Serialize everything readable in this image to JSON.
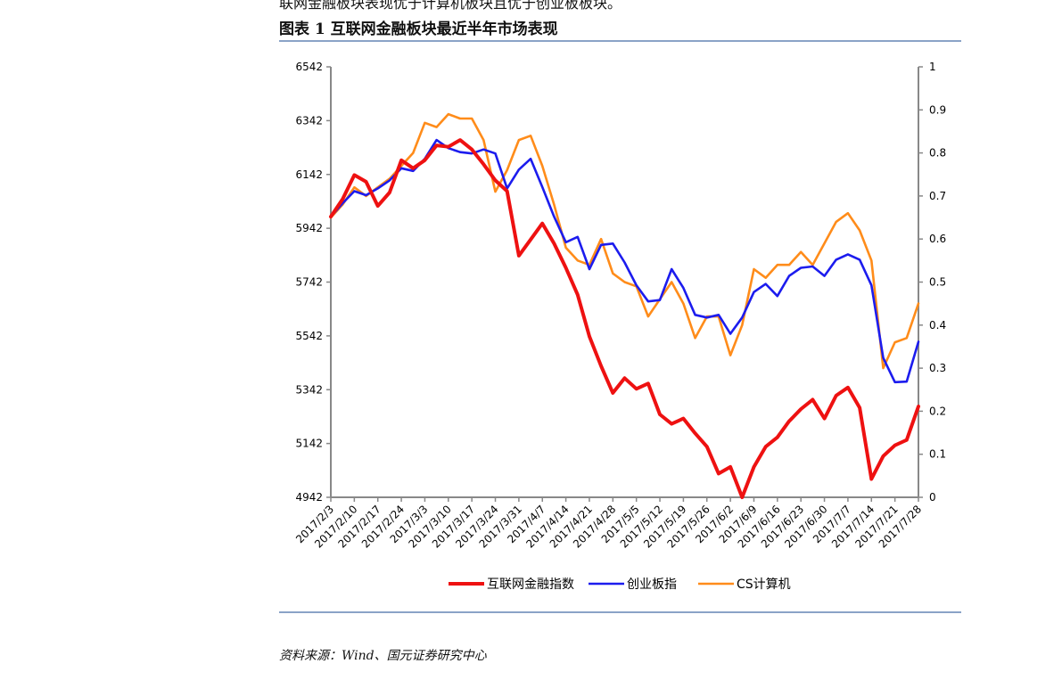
{
  "header": {
    "intro_text": "联网金融板块表现优于计算机板块且优于创业板板块。",
    "figure_title": "图表 1 互联网金融板块最近半年市场表现"
  },
  "footer": {
    "source": "资料来源：Wind、国元证券研究中心"
  },
  "chart_data": {
    "type": "line",
    "title": "",
    "left_axis": {
      "min": 4942,
      "max": 6542,
      "ticks": [
        "4942",
        "5142",
        "5342",
        "5542",
        "5742",
        "5942",
        "6142",
        "6342",
        "6542"
      ]
    },
    "right_axis": {
      "min": 0,
      "max": 1,
      "ticks": [
        "0",
        "0.1",
        "0.2",
        "0.3",
        "0.4",
        "0.5",
        "0.6",
        "0.7",
        "0.8",
        "0.9",
        "1"
      ]
    },
    "x_ticks": [
      "2017/2/3",
      "2017/2/10",
      "2017/2/17",
      "2017/2/24",
      "2017/3/3",
      "2017/3/10",
      "2017/3/17",
      "2017/3/24",
      "2017/3/31",
      "2017/4/7",
      "2017/4/14",
      "2017/4/21",
      "2017/4/28",
      "2017/5/5",
      "2017/5/12",
      "2017/5/19",
      "2017/5/26",
      "2017/6/2",
      "2017/6/9",
      "2017/6/16",
      "2017/6/23",
      "2017/6/30",
      "2017/7/7",
      "2017/7/14",
      "2017/7/21",
      "2017/7/28"
    ],
    "series": [
      {
        "name": "互联网金融指数",
        "color": "#ee1111",
        "values": [
          5985,
          6050,
          6140,
          6115,
          6025,
          6075,
          6195,
          6165,
          6195,
          6250,
          6245,
          6270,
          6235,
          6180,
          6120,
          6080,
          5840,
          5900,
          5960,
          5885,
          5795,
          5695,
          5540,
          5430,
          5330,
          5385,
          5345,
          5365,
          5250,
          5215,
          5235,
          5180,
          5130,
          5030,
          5055,
          4942,
          5055,
          5130,
          5165,
          5225,
          5270,
          5305,
          5235,
          5320,
          5350,
          5275,
          5010,
          5095,
          5135,
          5155,
          5280
        ]
      },
      {
        "name": "创业板指",
        "color": "#1c1cee",
        "values": [
          5985,
          6035,
          6080,
          6065,
          6090,
          6120,
          6165,
          6155,
          6200,
          6270,
          6240,
          6225,
          6220,
          6235,
          6220,
          6090,
          6160,
          6200,
          6095,
          5985,
          5890,
          5910,
          5790,
          5880,
          5885,
          5815,
          5730,
          5670,
          5675,
          5790,
          5720,
          5620,
          5610,
          5620,
          5550,
          5610,
          5705,
          5735,
          5690,
          5765,
          5795,
          5800,
          5765,
          5825,
          5845,
          5825,
          5730,
          5460,
          5370,
          5372,
          5520
        ]
      },
      {
        "name": "CS计算机",
        "color": "#ff8c1a",
        "values": [
          0.65,
          0.68,
          0.72,
          0.7,
          0.72,
          0.74,
          0.77,
          0.8,
          0.87,
          0.86,
          0.89,
          0.88,
          0.88,
          0.83,
          0.71,
          0.76,
          0.83,
          0.84,
          0.77,
          0.68,
          0.58,
          0.55,
          0.54,
          0.6,
          0.52,
          0.5,
          0.49,
          0.42,
          0.46,
          0.5,
          0.45,
          0.37,
          0.42,
          0.42,
          0.33,
          0.4,
          0.53,
          0.51,
          0.54,
          0.54,
          0.57,
          0.54,
          0.59,
          0.64,
          0.66,
          0.62,
          0.55,
          0.3,
          0.36,
          0.37,
          0.45
        ]
      }
    ],
    "grid": false,
    "legend_position": "bottom-center"
  }
}
